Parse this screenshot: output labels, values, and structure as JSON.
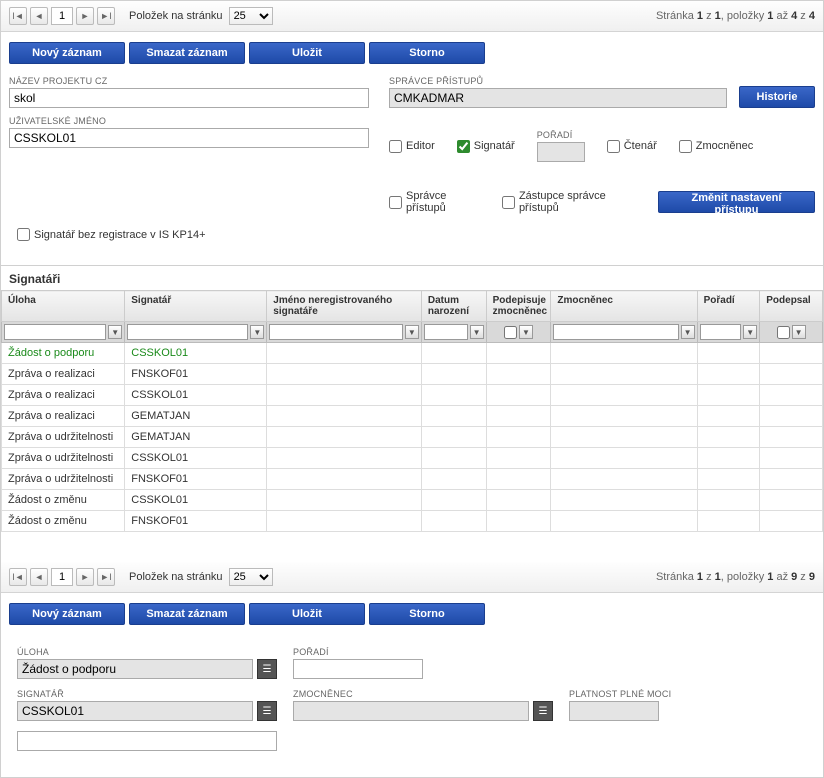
{
  "colors": {
    "primary_btn_bg_top": "#3a67c8",
    "primary_btn_bg_bot": "#1e4aa8",
    "primary_btn_border": "#1a3e8e",
    "grid_header_top": "#f6f6f6",
    "grid_header_bot": "#e4e4e4",
    "filter_row_bg": "#d9d9d9",
    "selected_row": "#1a8a1a"
  },
  "pager_top": {
    "page": "1",
    "per_page_label": "Položek na stránku",
    "per_page": "25",
    "info_prefix": "Stránka ",
    "info_page_cur": "1",
    "info_page_sep": " z ",
    "info_page_tot": "1",
    "info_items": ", položky ",
    "info_item_from": "1",
    "info_item_mid": " až ",
    "info_item_to": "4",
    "info_item_of": " z ",
    "info_item_tot": "4"
  },
  "buttons_top": {
    "new": "Nový záznam",
    "delete": "Smazat záznam",
    "save": "Uložit",
    "cancel": "Storno"
  },
  "project": {
    "name_label": "NÁZEV PROJEKTU CZ",
    "name": "skol",
    "admin_label": "SPRÁVCE PŘÍSTUPŮ",
    "admin": "CMKADMAR",
    "user_label": "UŽIVATELSKÉ JMÉNO",
    "user": "CSSKOL01",
    "history_btn": "Historie",
    "chk_editor": "Editor",
    "chk_sig": "Signatář",
    "chk_reader": "Čtenář",
    "chk_emp": "Zmocněnec",
    "order_label": "POŘADÍ",
    "order": "",
    "chk_admin": "Správce přístupů",
    "chk_deputy": "Zástupce správce přístupů",
    "change_btn": "Změnit nastavení přístupu",
    "no_reg": "Signatář bez registrace v IS KP14+"
  },
  "sig_section_title": "Signatáři",
  "grid": {
    "cols": {
      "uloha": "Úloha",
      "sig": "Signatář",
      "unreg": "Jméno neregistrovaného signatáře",
      "dob": "Datum narození",
      "signs": "Podepisuje zmocněnec",
      "emp": "Zmocněnec",
      "order": "Pořadí",
      "signed": "Podepsal"
    },
    "widths": {
      "uloha": 118,
      "sig": 136,
      "unreg": 148,
      "dob": 62,
      "signs": 62,
      "emp": 140,
      "order": 60,
      "signed": 60
    },
    "rows": [
      {
        "uloha": "Žádost o podporu",
        "sig": "CSSKOL01",
        "sel": true
      },
      {
        "uloha": "Zpráva o realizaci",
        "sig": "FNSKOF01"
      },
      {
        "uloha": "Zpráva o realizaci",
        "sig": "CSSKOL01"
      },
      {
        "uloha": "Zpráva o realizaci",
        "sig": "GEMATJAN"
      },
      {
        "uloha": "Zpráva o udržitelnosti",
        "sig": "GEMATJAN"
      },
      {
        "uloha": "Zpráva o udržitelnosti",
        "sig": "CSSKOL01"
      },
      {
        "uloha": "Zpráva o udržitelnosti",
        "sig": "FNSKOF01"
      },
      {
        "uloha": "Žádost o změnu",
        "sig": "CSSKOL01"
      },
      {
        "uloha": "Žádost o změnu",
        "sig": "FNSKOF01"
      }
    ]
  },
  "pager_bot": {
    "page": "1",
    "per_page_label": "Položek na stránku",
    "per_page": "25",
    "info_prefix": "Stránka ",
    "info_page_cur": "1",
    "info_page_sep": " z ",
    "info_page_tot": "1",
    "info_items": ", položky ",
    "info_item_from": "1",
    "info_item_mid": " až ",
    "info_item_to": "9",
    "info_item_of": " z ",
    "info_item_tot": "9"
  },
  "buttons_bot": {
    "new": "Nový záznam",
    "delete": "Smazat záznam",
    "save": "Uložit",
    "cancel": "Storno"
  },
  "lower": {
    "uloha_label": "ÚLOHA",
    "uloha": "Žádost o podporu",
    "poradi_label": "POŘADÍ",
    "poradi": "",
    "sig_label": "SIGNATÁŘ",
    "sig": "CSSKOL01",
    "emp_label": "ZMOCNĚNEC",
    "emp": "",
    "valid_label": "PLATNOST PLNÉ MOCI",
    "valid": ""
  }
}
